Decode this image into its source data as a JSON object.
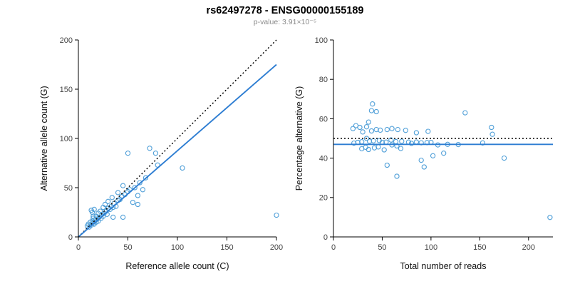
{
  "header": {
    "title": "rs62497278 - ENSG00000155189",
    "subtitle": "p-value: 3.91×10⁻⁵"
  },
  "colors": {
    "point": "#4f9fd8",
    "fit_line": "#2d7dd2",
    "reference_line": "#000000",
    "axis": "#000000",
    "tick_label": "#444444",
    "axis_label": "#111111",
    "subtitle_text": "#8a8a8a"
  },
  "chart_data": [
    {
      "type": "scatter",
      "title": "",
      "xlabel": "Reference allele count (C)",
      "ylabel": "Alternative allele count (G)",
      "xlim": [
        0,
        200
      ],
      "ylim": [
        0,
        200
      ],
      "xticks": [
        0,
        50,
        100,
        150,
        200
      ],
      "yticks": [
        0,
        50,
        100,
        150,
        200
      ],
      "grid": false,
      "legend": null,
      "x": [
        9,
        10,
        11,
        12,
        13,
        13,
        14,
        14,
        15,
        15,
        15,
        16,
        16,
        17,
        18,
        18,
        19,
        20,
        20,
        21,
        22,
        23,
        24,
        25,
        25,
        26,
        27,
        28,
        29,
        30,
        30,
        32,
        33,
        34,
        35,
        35,
        36,
        38,
        40,
        40,
        42,
        44,
        45,
        45,
        47,
        50,
        50,
        52,
        55,
        57,
        60,
        60,
        62,
        65,
        68,
        72,
        78,
        80,
        105,
        200
      ],
      "y": [
        11,
        13,
        10,
        15,
        12,
        27,
        16,
        25,
        14,
        19,
        21,
        13,
        28,
        17,
        21,
        15,
        18,
        16,
        24,
        20,
        26,
        19,
        23,
        21,
        30,
        24,
        33,
        26,
        23,
        29,
        36,
        28,
        31,
        40,
        30,
        20,
        34,
        31,
        37,
        45,
        38,
        41,
        52,
        20,
        43,
        46,
        85,
        48,
        35,
        50,
        42,
        33,
        55,
        48,
        60,
        90,
        85,
        73,
        70,
        22
      ],
      "lines": [
        {
          "name": "identity-line",
          "style": "dotted",
          "color": "#000000",
          "x1": 0,
          "y1": 0,
          "x2": 200,
          "y2": 200
        },
        {
          "name": "regression-line",
          "style": "solid",
          "color": "#2d7dd2",
          "x1": 0,
          "y1": 0,
          "x2": 200,
          "y2": 175
        }
      ]
    },
    {
      "type": "scatter",
      "title": "",
      "xlabel": "Total number of reads",
      "ylabel": "Percentage alternative (G)",
      "xlim": [
        0,
        225
      ],
      "ylim": [
        0,
        100
      ],
      "xticks": [
        0,
        50,
        100,
        150,
        200
      ],
      "yticks": [
        0,
        20,
        40,
        60,
        80,
        100
      ],
      "grid": false,
      "legend": null,
      "x": [
        20,
        23,
        21,
        27,
        25,
        40,
        30,
        39,
        29,
        34,
        36,
        29,
        44,
        34,
        39,
        33,
        37,
        36,
        44,
        41,
        48,
        42,
        47,
        46,
        55,
        50,
        60,
        54,
        52,
        59,
        66,
        60,
        64,
        74,
        65,
        55,
        70,
        69,
        77,
        85,
        80,
        85,
        97,
        65,
        90,
        96,
        135,
        100,
        90,
        107,
        102,
        93,
        117,
        113,
        128,
        162,
        163,
        153,
        175,
        222
      ],
      "y": [
        55.0,
        56.5,
        47.6,
        55.6,
        48.0,
        67.5,
        53.3,
        64.1,
        48.3,
        55.9,
        58.3,
        44.8,
        63.6,
        50.0,
        53.8,
        45.5,
        48.6,
        44.4,
        54.5,
        48.8,
        54.2,
        45.2,
        48.9,
        45.7,
        54.5,
        48.0,
        55.0,
        48.1,
        44.2,
        49.2,
        54.5,
        46.7,
        48.4,
        54.1,
        46.2,
        36.4,
        48.6,
        44.9,
        48.1,
        52.9,
        47.5,
        48.2,
        53.6,
        30.8,
        47.8,
        47.9,
        63.0,
        48.0,
        38.9,
        46.7,
        41.2,
        35.5,
        47.0,
        42.5,
        46.9,
        55.6,
        52.1,
        47.7,
        40.0,
        9.9
      ],
      "lines": [
        {
          "name": "expected-50-line",
          "style": "dotted",
          "color": "#000000",
          "x1": 0,
          "y1": 50,
          "x2": 225,
          "y2": 50
        },
        {
          "name": "mean-percentage-line",
          "style": "solid",
          "color": "#2d7dd2",
          "x1": 0,
          "y1": 47,
          "x2": 225,
          "y2": 47
        }
      ]
    }
  ]
}
